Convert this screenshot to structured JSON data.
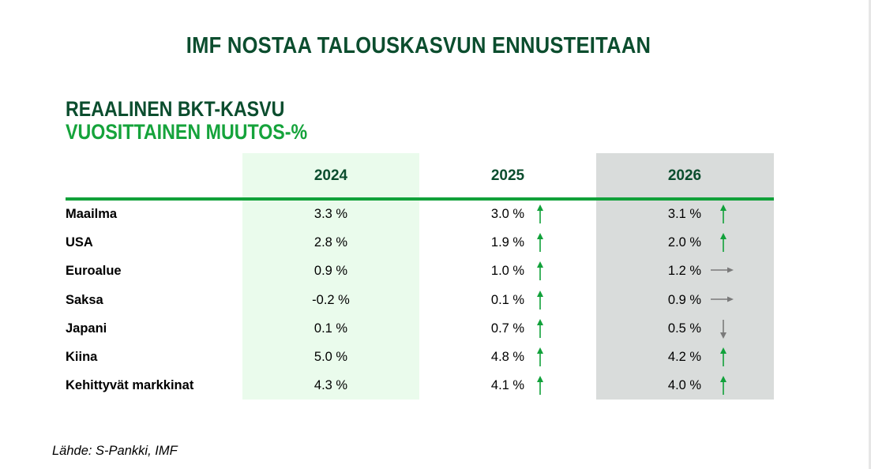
{
  "title": "IMF NOSTAA TALOUSKASVUN ENNUSTEITAAN",
  "subtitle_line1": "REAALINEN BKT-KASVU",
  "subtitle_line2": "VUOSITTAINEN MUUTOS-%",
  "source": "Lähde: S-Pankki, IMF",
  "colors": {
    "dark_green": "#0b4d2e",
    "green": "#15a33b",
    "arrow_up": "#11a13a",
    "arrow_flat": "#7a7a7a",
    "col2024_bg": "#eafbec",
    "col2026_bg": "#d9dcdb"
  },
  "chart_data": {
    "type": "table",
    "columns": [
      "2024",
      "2025",
      "2026"
    ],
    "rows": [
      {
        "label": "Maailma",
        "values": [
          "3.3 %",
          "3.0 %",
          "3.1 %"
        ],
        "arrows": [
          "",
          "up",
          "up"
        ]
      },
      {
        "label": "USA",
        "values": [
          "2.8 %",
          "1.9 %",
          "2.0 %"
        ],
        "arrows": [
          "",
          "up",
          "up"
        ]
      },
      {
        "label": "Euroalue",
        "values": [
          "0.9 %",
          "1.0 %",
          "1.2 %"
        ],
        "arrows": [
          "",
          "up",
          "right"
        ]
      },
      {
        "label": "Saksa",
        "values": [
          "-0.2 %",
          "0.1 %",
          "0.9 %"
        ],
        "arrows": [
          "",
          "up",
          "right"
        ]
      },
      {
        "label": "Japani",
        "values": [
          "0.1 %",
          "0.7 %",
          "0.5 %"
        ],
        "arrows": [
          "",
          "up",
          "down"
        ]
      },
      {
        "label": "Kiina",
        "values": [
          "5.0 %",
          "4.8 %",
          "4.2 %"
        ],
        "arrows": [
          "",
          "up",
          "up"
        ]
      },
      {
        "label": "Kehittyvät markkinat",
        "values": [
          "4.3 %",
          "4.1 %",
          "4.0 %"
        ],
        "arrows": [
          "",
          "up",
          "up"
        ]
      }
    ]
  }
}
